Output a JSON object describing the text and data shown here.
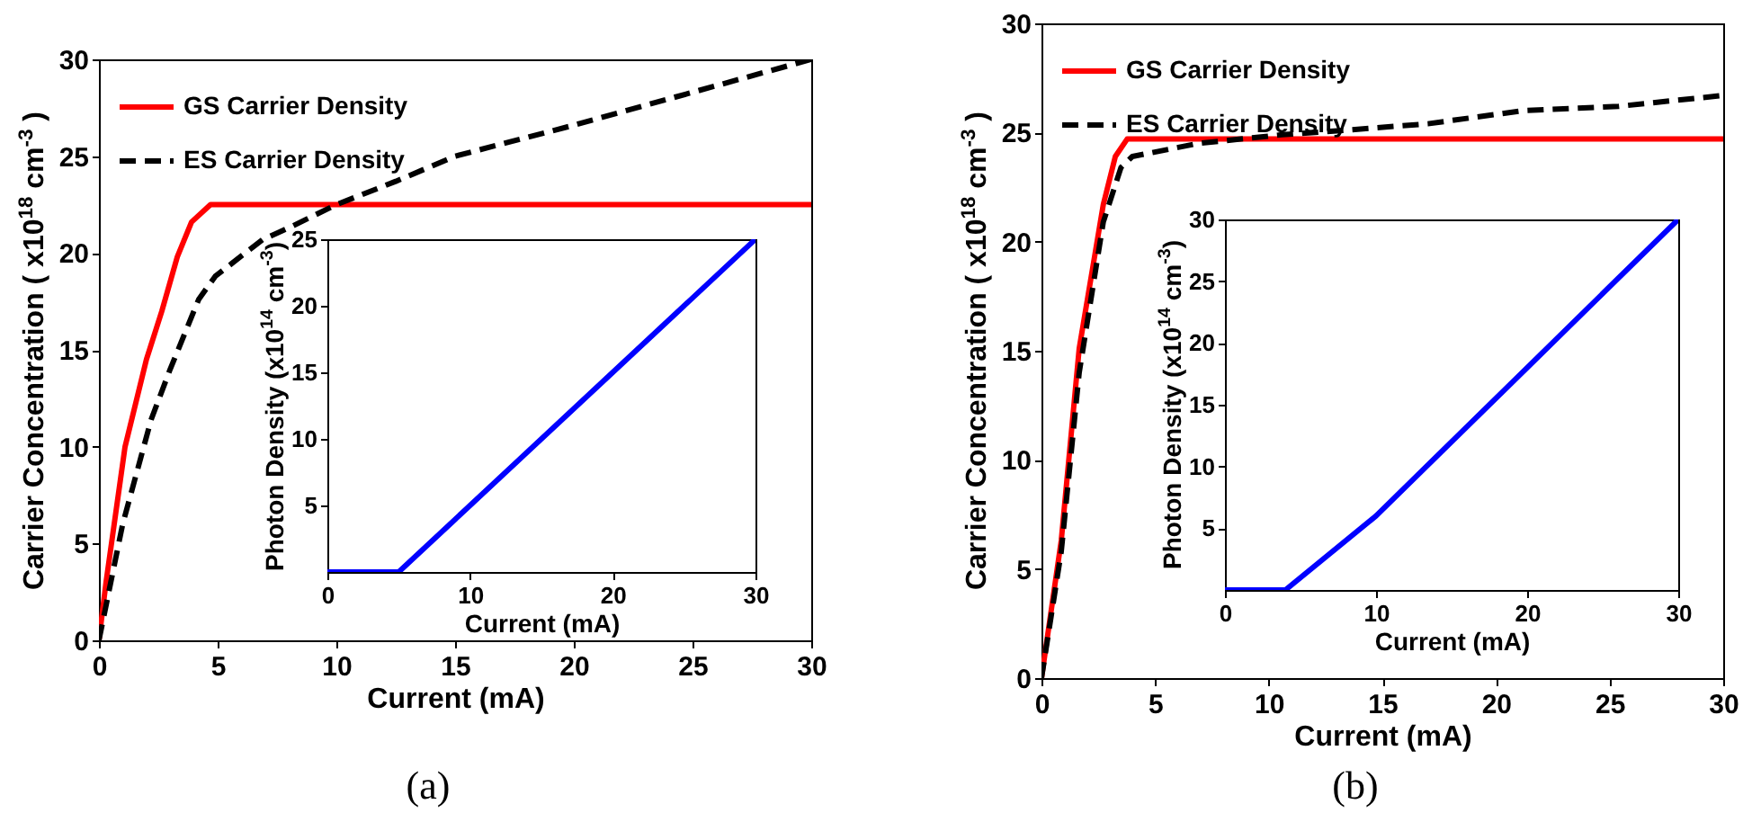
{
  "chart_data": [
    {
      "type": "line",
      "xlabel": "Current (mA)",
      "ylabel": "Carrier Concentration ( x10$^{18}$ cm$^{-3}$ )",
      "xlim": [
        0,
        30
      ],
      "ylim": [
        0,
        30
      ],
      "xticks": [
        0,
        5,
        10,
        15,
        20,
        25,
        30
      ],
      "yticks": [
        0,
        5,
        10,
        15,
        20,
        25,
        30
      ],
      "legend": "top left",
      "grid": false,
      "annotations": [
        "(a)"
      ],
      "series": [
        {
          "name": "GS Carrier Density",
          "color": "#ff0000",
          "line_style": "solid",
          "x": [
            0,
            0.3,
            1.1,
            2,
            2.65,
            3.3,
            3.9,
            4.7,
            30
          ],
          "values": [
            0,
            3,
            10,
            14.5,
            17,
            19.8,
            21.6,
            22.5,
            22.5
          ]
        },
        {
          "name": "ES Carrier Density",
          "color": "#000000",
          "line_style": "dashed",
          "x": [
            0,
            0.5,
            1,
            2.2,
            3,
            4.2,
            4.9,
            6.9,
            8,
            10,
            12.5,
            15,
            20,
            25,
            30
          ],
          "values": [
            0,
            3,
            6,
            11.4,
            14,
            17.6,
            18.8,
            20.7,
            21.3,
            22.5,
            23.7,
            25,
            26.6,
            28.3,
            30
          ]
        }
      ]
    },
    {
      "type": "line",
      "xlabel": "Current (mA)",
      "ylabel": "Photon Density (x10$^{14}$ cm$^{-3}$)",
      "xlim": [
        0,
        30
      ],
      "ylim": [
        0,
        25
      ],
      "xticks": [
        0,
        10,
        20,
        30
      ],
      "yticks": [
        5,
        10,
        15,
        20,
        25
      ],
      "grid": false,
      "series": [
        {
          "color": "#0000ff",
          "line_style": "solid",
          "x": [
            0,
            5,
            10,
            20,
            30
          ],
          "values": [
            0,
            0,
            5,
            15,
            25
          ]
        }
      ]
    },
    {
      "type": "line",
      "xlabel": "Current (mA)",
      "ylabel": "Carrier Concentration ( x10$^{18}$ cm$^{-3}$ )",
      "xlim": [
        0,
        30
      ],
      "ylim": [
        0,
        30
      ],
      "xticks": [
        0,
        5,
        10,
        15,
        20,
        25,
        30
      ],
      "yticks": [
        0,
        5,
        10,
        15,
        20,
        25,
        30
      ],
      "legend": "top left",
      "grid": false,
      "annotations": [
        "(b)"
      ],
      "series": [
        {
          "name": "GS Carrier Density",
          "color": "#ff0000",
          "line_style": "solid",
          "x": [
            0,
            0.87,
            1.66,
            2.72,
            3.25,
            3.77,
            30
          ],
          "values": [
            0,
            6.3,
            15.1,
            21.7,
            23.9,
            24.7,
            24.7
          ]
        },
        {
          "name": "ES Carrier Density",
          "color": "#000000",
          "line_style": "dashed",
          "x": [
            0,
            0.87,
            1.66,
            2.72,
            3.5,
            4,
            6.9,
            10.6,
            13.3,
            17,
            21.2,
            25.4,
            30
          ],
          "values": [
            0,
            5.8,
            14,
            20.9,
            23.4,
            23.9,
            24.5,
            24.9,
            25.1,
            25.4,
            26,
            26.2,
            26.7
          ]
        }
      ]
    },
    {
      "type": "line",
      "xlabel": "Current (mA)",
      "ylabel": "Photon Density (x10$^{14}$ cm$^{-3}$)",
      "xlim": [
        0,
        30
      ],
      "ylim": [
        0,
        30
      ],
      "xticks": [
        0,
        10,
        20,
        30
      ],
      "yticks": [
        5,
        10,
        15,
        20,
        25,
        30
      ],
      "grid": false,
      "series": [
        {
          "color": "#0000ff",
          "line_style": "solid",
          "x": [
            0,
            4,
            10,
            20,
            30
          ],
          "values": [
            0,
            0,
            6,
            18,
            30
          ]
        }
      ]
    }
  ]
}
